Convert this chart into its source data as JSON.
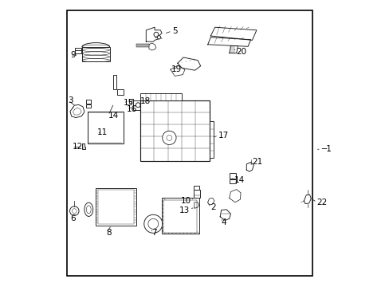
{
  "background_color": "#ffffff",
  "border_color": "#000000",
  "border_linewidth": 1.2,
  "line_color": "#1a1a1a",
  "label_color": "#000000",
  "label_fontsize": 7.5,
  "leader_linewidth": 0.55,
  "figsize": [
    4.89,
    3.6
  ],
  "dpi": 100,
  "border": [
    0.055,
    0.04,
    0.855,
    0.925
  ]
}
